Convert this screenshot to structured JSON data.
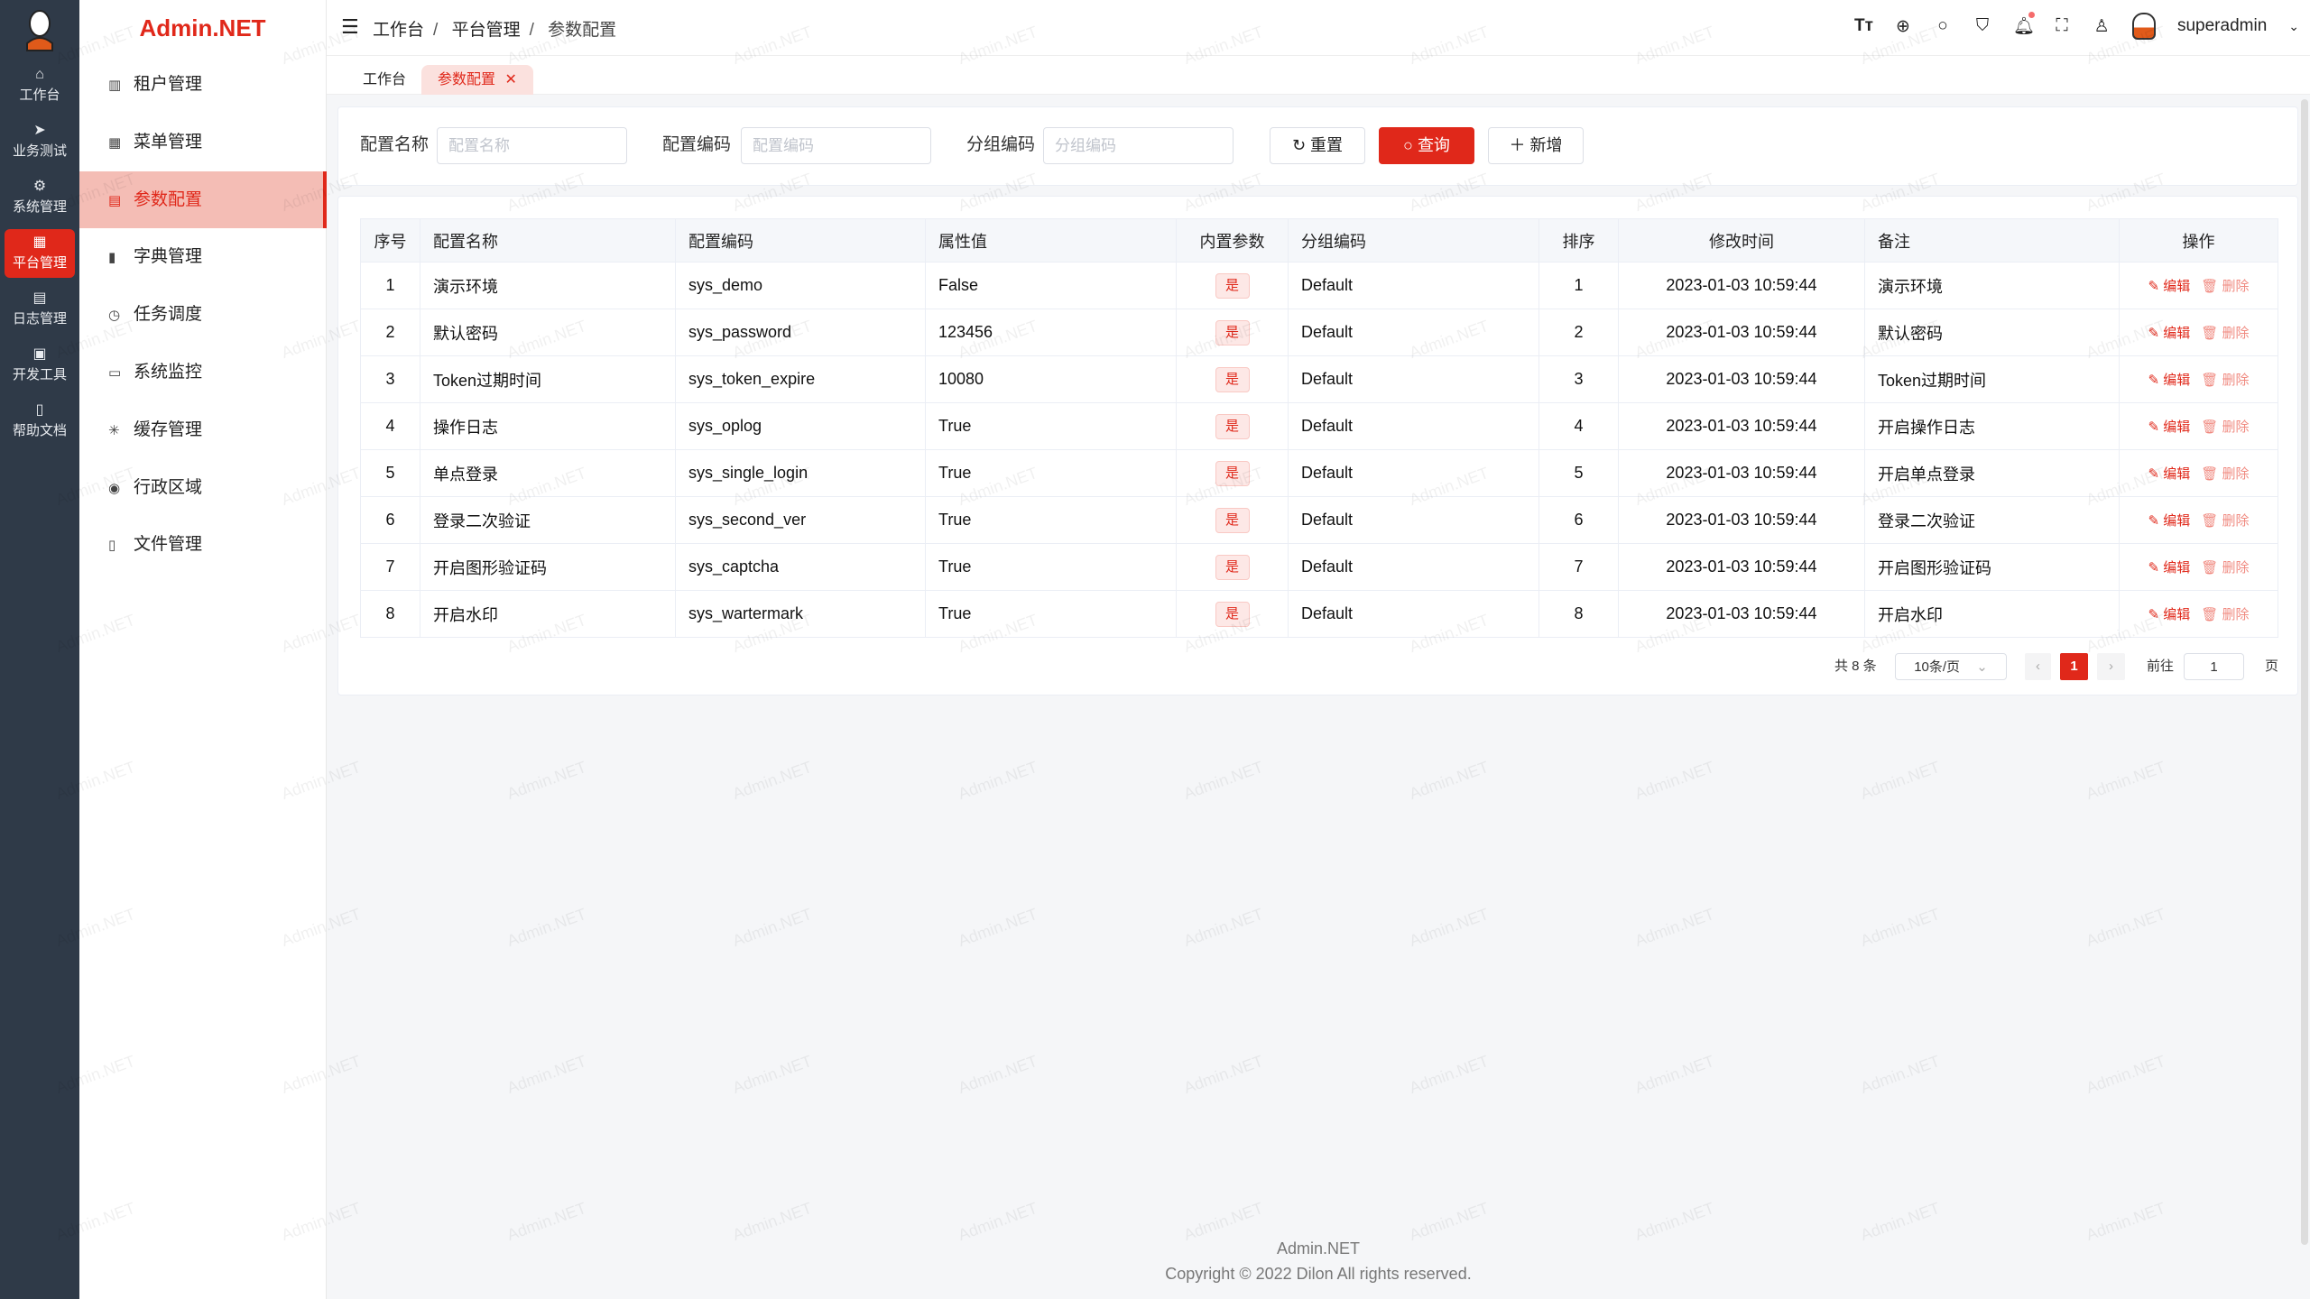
{
  "app": {
    "brand": "Admin.NET",
    "watermark": "Admin.NET",
    "accent": "#e0281a"
  },
  "rail": [
    {
      "icon": "home-icon",
      "glyph": "⌂",
      "label": "工作台"
    },
    {
      "icon": "send-icon",
      "glyph": "➤",
      "label": "业务测试"
    },
    {
      "icon": "gear-icon",
      "glyph": "⚙",
      "label": "系统管理"
    },
    {
      "icon": "grid-icon",
      "glyph": "▦",
      "label": "平台管理",
      "active": true
    },
    {
      "icon": "document-icon",
      "glyph": "▤",
      "label": "日志管理"
    },
    {
      "icon": "chip-icon",
      "glyph": "▣",
      "label": "开发工具"
    },
    {
      "icon": "book-icon",
      "glyph": "▯",
      "label": "帮助文档"
    }
  ],
  "menu": [
    {
      "icon": "building-icon",
      "glyph": "▥",
      "label": "租户管理"
    },
    {
      "icon": "grid-icon",
      "glyph": "▦",
      "label": "菜单管理"
    },
    {
      "icon": "document-icon",
      "glyph": "▤",
      "label": "参数配置",
      "active": true
    },
    {
      "icon": "book-icon",
      "glyph": "▮",
      "label": "字典管理"
    },
    {
      "icon": "alarm-clock-icon",
      "glyph": "◷",
      "label": "任务调度"
    },
    {
      "icon": "monitor-icon",
      "glyph": "▭",
      "label": "系统监控"
    },
    {
      "icon": "loading-icon",
      "glyph": "✳",
      "label": "缓存管理"
    },
    {
      "icon": "location-icon",
      "glyph": "◉",
      "label": "行政区域"
    },
    {
      "icon": "file-icon",
      "glyph": "▯",
      "label": "文件管理"
    }
  ],
  "header": {
    "breadcrumb": [
      "工作台",
      "平台管理",
      "参数配置"
    ],
    "user": "superadmin"
  },
  "tabs": [
    {
      "label": "工作台"
    },
    {
      "label": "参数配置",
      "active": true
    }
  ],
  "search": {
    "fields": [
      {
        "label": "配置名称",
        "placeholder": "配置名称"
      },
      {
        "label": "配置编码",
        "placeholder": "配置编码"
      },
      {
        "label": "分组编码",
        "placeholder": "分组编码"
      }
    ],
    "reset": "重置",
    "query": "查询",
    "add": "新增"
  },
  "table": {
    "columns": [
      "序号",
      "配置名称",
      "配置编码",
      "属性值",
      "内置参数",
      "分组编码",
      "排序",
      "修改时间",
      "备注",
      "操作"
    ],
    "edit": "编辑",
    "delete": "删除",
    "rows": [
      [
        "1",
        "演示环境",
        "sys_demo",
        "False",
        "是",
        "Default",
        "1",
        "2023-01-03 10:59:44",
        "演示环境"
      ],
      [
        "2",
        "默认密码",
        "sys_password",
        "123456",
        "是",
        "Default",
        "2",
        "2023-01-03 10:59:44",
        "默认密码"
      ],
      [
        "3",
        "Token过期时间",
        "sys_token_expire",
        "10080",
        "是",
        "Default",
        "3",
        "2023-01-03 10:59:44",
        "Token过期时间"
      ],
      [
        "4",
        "操作日志",
        "sys_oplog",
        "True",
        "是",
        "Default",
        "4",
        "2023-01-03 10:59:44",
        "开启操作日志"
      ],
      [
        "5",
        "单点登录",
        "sys_single_login",
        "True",
        "是",
        "Default",
        "5",
        "2023-01-03 10:59:44",
        "开启单点登录"
      ],
      [
        "6",
        "登录二次验证",
        "sys_second_ver",
        "True",
        "是",
        "Default",
        "6",
        "2023-01-03 10:59:44",
        "登录二次验证"
      ],
      [
        "7",
        "开启图形验证码",
        "sys_captcha",
        "True",
        "是",
        "Default",
        "7",
        "2023-01-03 10:59:44",
        "开启图形验证码"
      ],
      [
        "8",
        "开启水印",
        "sys_wartermark",
        "True",
        "是",
        "Default",
        "8",
        "2023-01-03 10:59:44",
        "开启水印"
      ]
    ]
  },
  "pagination": {
    "total": "共 8 条",
    "page_size": "10条/页",
    "current": "1",
    "goto_label": "前往",
    "goto_value": "1",
    "page_suffix": "页"
  },
  "footer": {
    "name": "Admin.NET",
    "copyright": "Copyright © 2022 Dilon All rights reserved."
  }
}
